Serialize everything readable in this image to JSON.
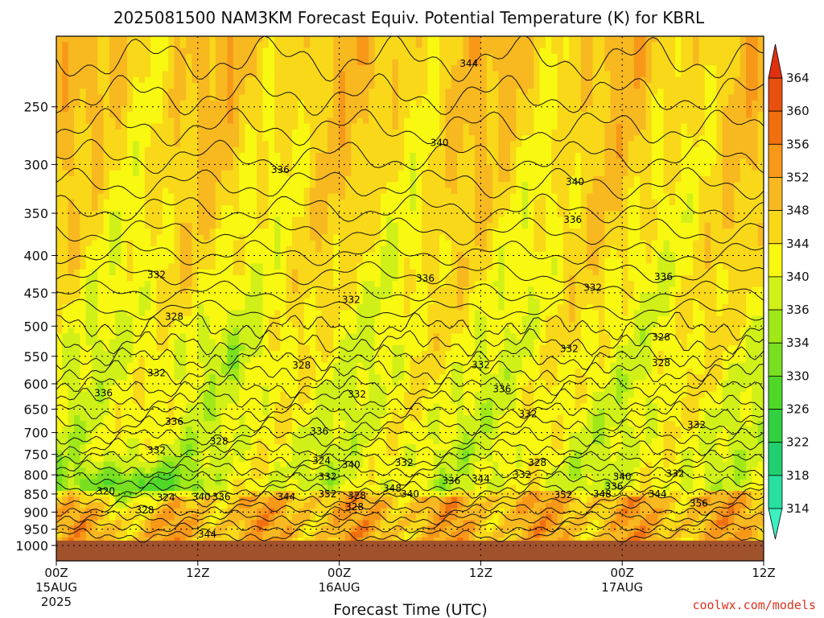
{
  "chart_data": {
    "type": "heatmap",
    "title": "2025081500 NAM3KM Forecast Equiv. Potential Temperature (K) for KBRL",
    "xlabel": "Forecast Time (UTC)",
    "ylabel": "",
    "credit": "coolwx.com/models",
    "y_axis": {
      "scale": "log",
      "range": [
        1050,
        200
      ],
      "ticks": [
        250,
        300,
        350,
        400,
        450,
        500,
        550,
        600,
        650,
        700,
        750,
        800,
        850,
        900,
        950,
        1000
      ]
    },
    "x_axis": {
      "ticks": [
        {
          "label": "00Z",
          "sub": "15AUG",
          "sub2": "2025",
          "hour": 0
        },
        {
          "label": "12Z",
          "sub": "",
          "sub2": "",
          "hour": 12
        },
        {
          "label": "00Z",
          "sub": "16AUG",
          "sub2": "",
          "hour": 24
        },
        {
          "label": "12Z",
          "sub": "",
          "sub2": "",
          "hour": 36
        },
        {
          "label": "00Z",
          "sub": "17AUG",
          "sub2": "",
          "hour": 48
        },
        {
          "label": "12Z",
          "sub": "",
          "sub2": "",
          "hour": 60
        }
      ],
      "range": [
        0,
        60
      ]
    },
    "colorbar": {
      "levels": [
        314,
        318,
        322,
        326,
        330,
        334,
        336,
        340,
        344,
        348,
        352,
        356,
        360,
        364
      ],
      "colors": [
        "#3cf0c0",
        "#28e0a0",
        "#20d070",
        "#30d040",
        "#50d828",
        "#78e020",
        "#a0e818",
        "#d0f018",
        "#f8f810",
        "#f8d818",
        "#f8b820",
        "#f89818",
        "#f07010",
        "#e85010",
        "#e03010"
      ]
    },
    "contour_labels": [
      {
        "text": "344",
        "hour": 35.0,
        "p": 218
      },
      {
        "text": "340",
        "hour": 32.5,
        "p": 280
      },
      {
        "text": "340",
        "hour": 44.0,
        "p": 317
      },
      {
        "text": "336",
        "hour": 19.0,
        "p": 305
      },
      {
        "text": "336",
        "hour": 43.8,
        "p": 357
      },
      {
        "text": "336",
        "hour": 31.3,
        "p": 430
      },
      {
        "text": "336",
        "hour": 51.5,
        "p": 428
      },
      {
        "text": "332",
        "hour": 8.5,
        "p": 425
      },
      {
        "text": "332",
        "hour": 25.0,
        "p": 460
      },
      {
        "text": "332",
        "hour": 45.5,
        "p": 443
      },
      {
        "text": "332",
        "hour": 8.5,
        "p": 580
      },
      {
        "text": "332",
        "hour": 36.0,
        "p": 565
      },
      {
        "text": "332",
        "hour": 43.5,
        "p": 537
      },
      {
        "text": "332",
        "hour": 25.5,
        "p": 620
      },
      {
        "text": "332",
        "hour": 40.0,
        "p": 660
      },
      {
        "text": "332",
        "hour": 54.3,
        "p": 683
      },
      {
        "text": "332",
        "hour": 8.5,
        "p": 740
      },
      {
        "text": "332",
        "hour": 29.5,
        "p": 770
      },
      {
        "text": "332",
        "hour": 39.5,
        "p": 800
      },
      {
        "text": "332",
        "hour": 52.5,
        "p": 797
      },
      {
        "text": "332",
        "hour": 23.0,
        "p": 805
      },
      {
        "text": "328",
        "hour": 10.0,
        "p": 485
      },
      {
        "text": "328",
        "hour": 20.8,
        "p": 566
      },
      {
        "text": "328",
        "hour": 51.3,
        "p": 518
      },
      {
        "text": "328",
        "hour": 51.3,
        "p": 562
      },
      {
        "text": "328",
        "hour": 13.8,
        "p": 720
      },
      {
        "text": "328",
        "hour": 40.8,
        "p": 770
      },
      {
        "text": "328",
        "hour": 7.5,
        "p": 895
      },
      {
        "text": "328",
        "hour": 25.3,
        "p": 885
      },
      {
        "text": "336",
        "hour": 4.0,
        "p": 618
      },
      {
        "text": "336",
        "hour": 37.8,
        "p": 610
      },
      {
        "text": "336",
        "hour": 10.0,
        "p": 676
      },
      {
        "text": "336",
        "hour": 22.3,
        "p": 697
      },
      {
        "text": "336",
        "hour": 33.5,
        "p": 815
      },
      {
        "text": "336",
        "hour": 47.3,
        "p": 830
      },
      {
        "text": "336",
        "hour": 14.0,
        "p": 858
      },
      {
        "text": "324",
        "hour": 22.5,
        "p": 765
      },
      {
        "text": "324",
        "hour": 9.3,
        "p": 860
      },
      {
        "text": "320",
        "hour": 4.2,
        "p": 843
      },
      {
        "text": "340",
        "hour": 25.0,
        "p": 775
      },
      {
        "text": "340",
        "hour": 48.0,
        "p": 805
      },
      {
        "text": "340",
        "hour": 12.3,
        "p": 858
      },
      {
        "text": "340",
        "hour": 30.0,
        "p": 850
      },
      {
        "text": "344",
        "hour": 36.0,
        "p": 810
      },
      {
        "text": "344",
        "hour": 19.5,
        "p": 858
      },
      {
        "text": "344",
        "hour": 51.0,
        "p": 850
      },
      {
        "text": "344",
        "hour": 12.8,
        "p": 965
      },
      {
        "text": "348",
        "hour": 28.5,
        "p": 835
      },
      {
        "text": "348",
        "hour": 46.3,
        "p": 850
      },
      {
        "text": "352",
        "hour": 23.0,
        "p": 850
      },
      {
        "text": "352",
        "hour": 43.0,
        "p": 852
      },
      {
        "text": "356",
        "hour": 54.5,
        "p": 875
      },
      {
        "text": "328",
        "hour": 25.5,
        "p": 855
      }
    ]
  }
}
